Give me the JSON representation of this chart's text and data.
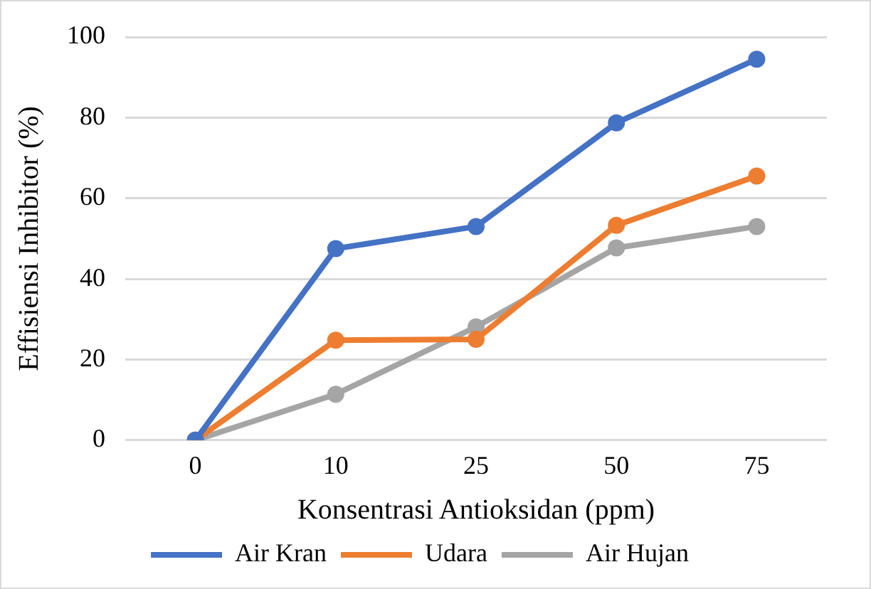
{
  "chart_data": {
    "type": "line",
    "xlabel": "Konsentrasi Antioksidan (ppm)",
    "ylabel": "Effisiensi Inhibitor (%)",
    "categories": [
      "0",
      "10",
      "25",
      "50",
      "75"
    ],
    "series": [
      {
        "name": "Air Kran",
        "color": "#4472c4",
        "values": [
          0,
          47.5,
          53,
          78.7,
          94.5
        ]
      },
      {
        "name": "Udara",
        "color": "#ed7d31",
        "values": [
          0,
          24.8,
          25,
          53.3,
          65.5
        ]
      },
      {
        "name": "Air Hujan",
        "color": "#a5a5a5",
        "values": [
          0,
          11.4,
          28.1,
          47.7,
          53
        ]
      }
    ],
    "ylim": [
      0,
      100
    ],
    "yticks": [
      0,
      20,
      40,
      60,
      80,
      100
    ],
    "grid": "y",
    "legend": "bottom",
    "marker": "circle",
    "line_style": "solid"
  }
}
